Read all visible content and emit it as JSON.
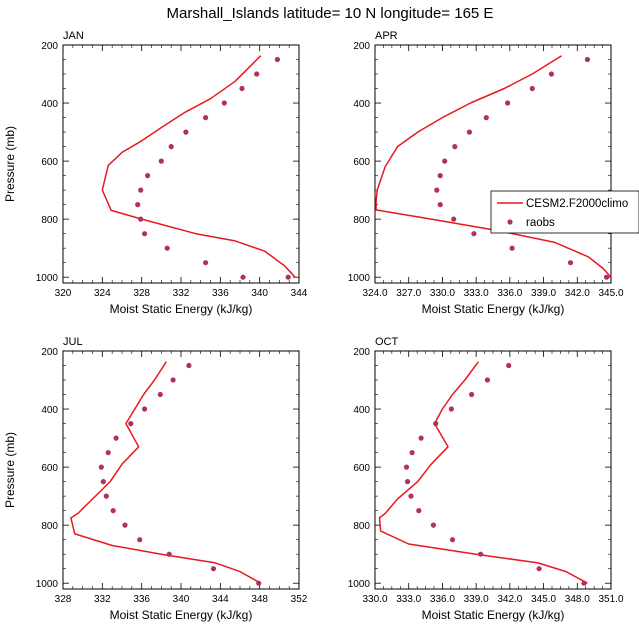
{
  "figure": {
    "title": "Marshall_Islands  latitude= 10 N longitude= 165 E"
  },
  "legend": {
    "line_label": "CESM2.F2000climo",
    "marker_label": "raobs",
    "line_color": "#e8191e",
    "marker_color": "#b03060",
    "placement": "right of APR panel"
  },
  "chart_data": [
    {
      "type": "line",
      "panel": "JAN",
      "xlabel": "Moist Static Energy (kJ/kg)",
      "ylabel": "Pressure (mb)",
      "xlim": [
        320,
        344
      ],
      "ylim": [
        1020,
        200
      ],
      "y_reversed": true,
      "grid": false,
      "xticks": [
        320,
        324,
        328,
        332,
        336,
        340,
        344
      ],
      "xtick_labels": [
        "320",
        "324",
        "328",
        "332",
        "336",
        "340",
        "344"
      ],
      "yticks": [
        200,
        400,
        600,
        800,
        1000
      ],
      "ytick_labels": [
        "200",
        "400",
        "600",
        "800",
        "1000"
      ],
      "series": [
        {
          "name": "CESM2.F2000climo",
          "kind": "line",
          "color": "#e8191e",
          "x": [
            340.1,
            337.5,
            335.0,
            332.5,
            330.2,
            328.0,
            326.0,
            324.6,
            324.0,
            324.9,
            328.0,
            333.5,
            337.5,
            340.5,
            342.5,
            343.2,
            343.6
          ],
          "y": [
            237,
            325,
            385,
            430,
            480,
            530,
            570,
            615,
            700,
            770,
            800,
            850,
            875,
            910,
            960,
            985,
            1000
          ]
        },
        {
          "name": "raobs",
          "kind": "scatter",
          "color": "#b03060",
          "x": [
            341.8,
            339.7,
            338.2,
            336.4,
            334.5,
            332.5,
            331.0,
            330.0,
            328.6,
            327.9,
            327.6,
            327.9,
            328.3,
            330.6,
            334.5,
            338.3,
            342.9
          ],
          "y": [
            250,
            300,
            350,
            400,
            450,
            500,
            550,
            600,
            650,
            700,
            750,
            800,
            850,
            900,
            950,
            1000,
            1000
          ]
        }
      ]
    },
    {
      "type": "line",
      "panel": "APR",
      "xlabel": "Moist Static Energy (kJ/kg)",
      "ylabel": "",
      "xlim": [
        324.0,
        345.0
      ],
      "ylim": [
        1020,
        200
      ],
      "y_reversed": true,
      "grid": false,
      "xticks": [
        324.0,
        327.0,
        330.0,
        333.0,
        336.0,
        339.0,
        342.0,
        345.0
      ],
      "xtick_labels": [
        "324.0",
        "327.0",
        "330.0",
        "333.0",
        "336.0",
        "339.0",
        "342.0",
        "345.0"
      ],
      "yticks": [
        200,
        400,
        600,
        800,
        1000
      ],
      "ytick_labels": [
        "200",
        "400",
        "600",
        "800",
        "1000"
      ],
      "series": [
        {
          "name": "CESM2.F2000climo",
          "kind": "line",
          "color": "#e8191e",
          "x": [
            340.6,
            338.0,
            335.5,
            332.5,
            330.0,
            327.8,
            326.0,
            324.9,
            324.2,
            324.1,
            324.1,
            329.0,
            335.0,
            340.0,
            343.0,
            344.3,
            345.0
          ],
          "y": [
            237,
            300,
            350,
            400,
            450,
            500,
            550,
            620,
            700,
            740,
            768,
            800,
            840,
            880,
            930,
            970,
            1000
          ]
        },
        {
          "name": "raobs",
          "kind": "scatter",
          "color": "#b03060",
          "x": [
            342.9,
            339.7,
            338.0,
            335.8,
            333.9,
            332.4,
            331.1,
            330.2,
            329.8,
            329.5,
            329.8,
            331.0,
            332.8,
            336.2,
            341.4,
            344.6
          ],
          "y": [
            250,
            300,
            350,
            400,
            450,
            500,
            550,
            600,
            650,
            700,
            750,
            800,
            850,
            900,
            950,
            1000
          ]
        }
      ]
    },
    {
      "type": "line",
      "panel": "JUL",
      "xlabel": "Moist Static Energy (kJ/kg)",
      "ylabel": "Pressure (mb)",
      "xlim": [
        328,
        352
      ],
      "ylim": [
        1020,
        200
      ],
      "y_reversed": true,
      "grid": false,
      "xticks": [
        328,
        332,
        336,
        340,
        344,
        348,
        352
      ],
      "xtick_labels": [
        "328",
        "332",
        "336",
        "340",
        "344",
        "348",
        "352"
      ],
      "yticks": [
        200,
        400,
        600,
        800,
        1000
      ],
      "ytick_labels": [
        "200",
        "400",
        "600",
        "800",
        "1000"
      ],
      "series": [
        {
          "name": "CESM2.F2000climo",
          "kind": "line",
          "color": "#e8191e",
          "x": [
            338.5,
            337.3,
            336.2,
            335.3,
            334.4,
            335.7,
            334.0,
            332.8,
            331.0,
            329.5,
            328.8,
            329.2,
            333.0,
            338.0,
            343.5,
            346.0,
            348.1
          ],
          "y": [
            237,
            300,
            350,
            400,
            450,
            530,
            590,
            650,
            710,
            760,
            775,
            830,
            870,
            900,
            930,
            960,
            1000
          ]
        },
        {
          "name": "raobs",
          "kind": "scatter",
          "color": "#b03060",
          "x": [
            340.8,
            339.2,
            337.9,
            336.3,
            334.9,
            333.4,
            332.6,
            331.9,
            332.1,
            332.4,
            333.1,
            334.3,
            335.8,
            338.8,
            343.3,
            347.9
          ],
          "y": [
            250,
            300,
            350,
            400,
            450,
            500,
            550,
            600,
            650,
            700,
            750,
            800,
            850,
            900,
            950,
            1000
          ]
        }
      ]
    },
    {
      "type": "line",
      "panel": "OCT",
      "xlabel": "Moist Static Energy (kJ/kg)",
      "ylabel": "",
      "xlim": [
        330.0,
        351.0
      ],
      "ylim": [
        1020,
        200
      ],
      "y_reversed": true,
      "grid": false,
      "xticks": [
        330.0,
        333.0,
        336.0,
        339.0,
        342.0,
        345.0,
        348.0,
        351.0
      ],
      "xtick_labels": [
        "330.0",
        "333.0",
        "336.0",
        "339.0",
        "342.0",
        "345.0",
        "348.0",
        "351.0"
      ],
      "yticks": [
        200,
        400,
        600,
        800,
        1000
      ],
      "ytick_labels": [
        "200",
        "400",
        "600",
        "800",
        "1000"
      ],
      "series": [
        {
          "name": "CESM2.F2000climo",
          "kind": "line",
          "color": "#e8191e",
          "x": [
            339.2,
            338.0,
            336.9,
            336.0,
            335.3,
            336.5,
            335.0,
            333.8,
            332.0,
            330.9,
            330.4,
            330.5,
            333.0,
            339.0,
            344.5,
            347.0,
            348.9
          ],
          "y": [
            237,
            300,
            350,
            400,
            450,
            530,
            590,
            650,
            710,
            760,
            775,
            820,
            865,
            900,
            930,
            960,
            1000
          ]
        },
        {
          "name": "raobs",
          "kind": "scatter",
          "color": "#b03060",
          "x": [
            341.9,
            340.0,
            338.6,
            336.8,
            335.4,
            334.1,
            333.3,
            332.8,
            332.9,
            333.2,
            333.9,
            335.2,
            336.9,
            339.4,
            344.6,
            348.6
          ],
          "y": [
            250,
            300,
            350,
            400,
            450,
            500,
            550,
            600,
            650,
            700,
            750,
            800,
            850,
            900,
            950,
            1000
          ]
        }
      ]
    }
  ]
}
